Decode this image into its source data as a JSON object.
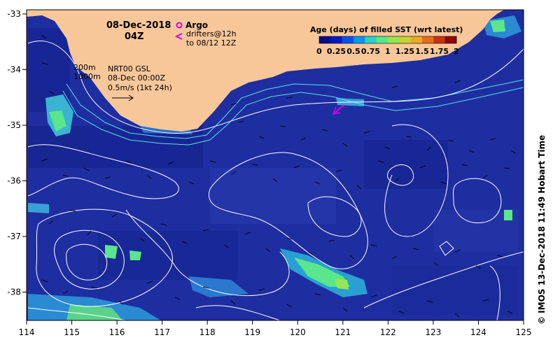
{
  "map": {
    "date": "08-Dec-2018",
    "time": "04Z",
    "legend_argo": "Argo",
    "legend_drifters": "drifters@12h",
    "legend_drifters_to": "to 08/12 12Z",
    "contour_200": "200m",
    "contour_1000": "1000m",
    "product": "NRT00 GSL",
    "product_time": "08-Dec 00:00Z",
    "velocity_scale": "0.5m/s (1kt 24h)",
    "credit": "© IMOS 13-Dec-2018 11:49 Hobart Time"
  },
  "colorbar": {
    "title": "Age (days) of filled SST (wrt latest)",
    "labels": [
      "0",
      "0.25",
      "0.5",
      "0.75",
      "1",
      "1.25",
      "1.5",
      "1.75",
      "2"
    ],
    "colors": [
      "#0a0a8c",
      "#0018c8",
      "#0050f0",
      "#0096f0",
      "#28d2c8",
      "#5ae68c",
      "#96e650",
      "#c8d232",
      "#e6aa28",
      "#e66e1e",
      "#c83214",
      "#8c0a0a"
    ]
  },
  "axes": {
    "lon_ticks": [
      "114",
      "115",
      "116",
      "117",
      "118",
      "119",
      "120",
      "121",
      "122",
      "123",
      "124",
      "125"
    ],
    "lat_ticks": [
      "-33",
      "-34",
      "-35",
      "-36",
      "-37",
      "-38"
    ]
  },
  "colors": {
    "ocean": "#1f2fa0",
    "land": "#f7c79a",
    "isobath": "#5ae0e6",
    "ssh_contour": "#ffffff",
    "argo": "#e000e0"
  }
}
